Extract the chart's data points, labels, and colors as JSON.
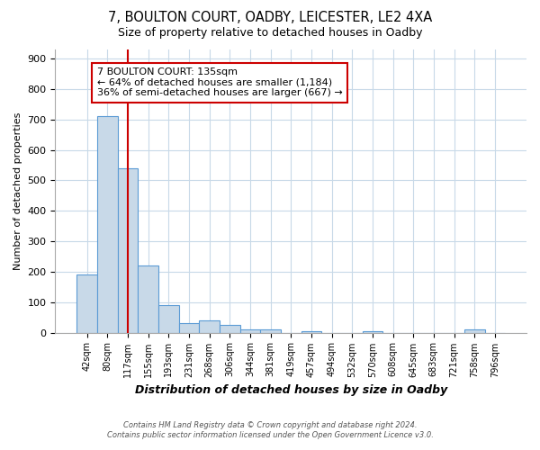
{
  "title1": "7, BOULTON COURT, OADBY, LEICESTER, LE2 4XA",
  "title2": "Size of property relative to detached houses in Oadby",
  "xlabel": "Distribution of detached houses by size in Oadby",
  "ylabel": "Number of detached properties",
  "footer1": "Contains HM Land Registry data © Crown copyright and database right 2024.",
  "footer2": "Contains public sector information licensed under the Open Government Licence v3.0.",
  "annotation_line1": "7 BOULTON COURT: 135sqm",
  "annotation_line2": "← 64% of detached houses are smaller (1,184)",
  "annotation_line3": "36% of semi-detached houses are larger (667) →",
  "bar_labels": [
    "42sqm",
    "80sqm",
    "117sqm",
    "155sqm",
    "193sqm",
    "231sqm",
    "268sqm",
    "306sqm",
    "344sqm",
    "381sqm",
    "419sqm",
    "457sqm",
    "494sqm",
    "532sqm",
    "570sqm",
    "608sqm",
    "645sqm",
    "683sqm",
    "721sqm",
    "758sqm",
    "796sqm"
  ],
  "bar_values": [
    190,
    710,
    540,
    220,
    90,
    30,
    40,
    25,
    10,
    10,
    0,
    5,
    0,
    0,
    5,
    0,
    0,
    0,
    0,
    10,
    0
  ],
  "bar_color": "#c8d9e8",
  "bar_edge_color": "#5b9bd5",
  "vline_index": 2,
  "ylim": [
    0,
    930
  ],
  "yticks": [
    0,
    100,
    200,
    300,
    400,
    500,
    600,
    700,
    800,
    900
  ],
  "vline_color": "#cc0000",
  "annotation_border_color": "#cc0000",
  "background_color": "#ffffff",
  "grid_color": "#c8d9e8"
}
